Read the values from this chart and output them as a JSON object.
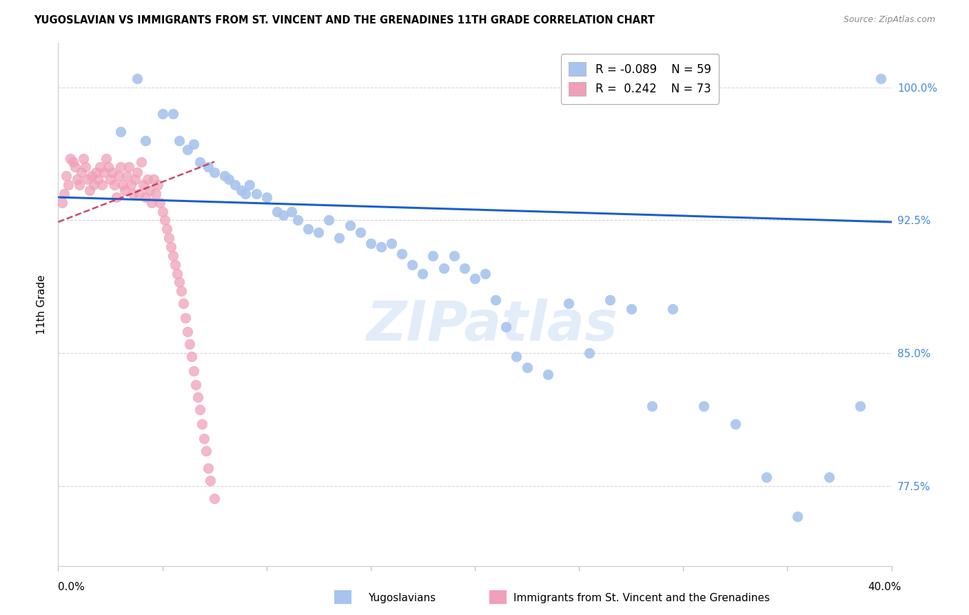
{
  "title": "YUGOSLAVIAN VS IMMIGRANTS FROM ST. VINCENT AND THE GRENADINES 11TH GRADE CORRELATION CHART",
  "source": "Source: ZipAtlas.com",
  "ylabel": "11th Grade",
  "ytick_labels": [
    "77.5%",
    "85.0%",
    "92.5%",
    "100.0%"
  ],
  "ytick_values": [
    0.775,
    0.85,
    0.925,
    1.0
  ],
  "ylim": [
    0.73,
    1.025
  ],
  "xlim": [
    0.0,
    0.4
  ],
  "blue_R": -0.089,
  "blue_N": 59,
  "pink_R": 0.242,
  "pink_N": 73,
  "blue_label": "Yugoslavians",
  "pink_label": "Immigrants from St. Vincent and the Grenadines",
  "blue_color": "#a8c4ee",
  "pink_color": "#f0a0b8",
  "blue_edge_color": "#7aaade",
  "pink_edge_color": "#e07898",
  "blue_line_color": "#1a5fcc",
  "pink_line_color": "#cc3355",
  "blue_x": [
    0.03,
    0.038,
    0.042,
    0.05,
    0.055,
    0.058,
    0.062,
    0.065,
    0.068,
    0.072,
    0.075,
    0.08,
    0.082,
    0.085,
    0.088,
    0.09,
    0.092,
    0.095,
    0.1,
    0.105,
    0.108,
    0.112,
    0.115,
    0.12,
    0.125,
    0.13,
    0.135,
    0.14,
    0.145,
    0.15,
    0.155,
    0.16,
    0.165,
    0.17,
    0.175,
    0.18,
    0.185,
    0.19,
    0.195,
    0.2,
    0.205,
    0.21,
    0.215,
    0.22,
    0.225,
    0.235,
    0.245,
    0.255,
    0.265,
    0.275,
    0.285,
    0.295,
    0.31,
    0.325,
    0.34,
    0.355,
    0.37,
    0.385,
    0.395
  ],
  "blue_y": [
    0.975,
    1.005,
    0.97,
    0.985,
    0.985,
    0.97,
    0.965,
    0.968,
    0.958,
    0.955,
    0.952,
    0.95,
    0.948,
    0.945,
    0.942,
    0.94,
    0.945,
    0.94,
    0.938,
    0.93,
    0.928,
    0.93,
    0.925,
    0.92,
    0.918,
    0.925,
    0.915,
    0.922,
    0.918,
    0.912,
    0.91,
    0.912,
    0.906,
    0.9,
    0.895,
    0.905,
    0.898,
    0.905,
    0.898,
    0.892,
    0.895,
    0.88,
    0.865,
    0.848,
    0.842,
    0.838,
    0.878,
    0.85,
    0.88,
    0.875,
    0.82,
    0.875,
    0.82,
    0.81,
    0.78,
    0.758,
    0.78,
    0.82,
    1.005
  ],
  "pink_x": [
    0.002,
    0.003,
    0.004,
    0.005,
    0.006,
    0.007,
    0.008,
    0.009,
    0.01,
    0.011,
    0.012,
    0.013,
    0.014,
    0.015,
    0.016,
    0.017,
    0.018,
    0.019,
    0.02,
    0.021,
    0.022,
    0.023,
    0.024,
    0.025,
    0.026,
    0.027,
    0.028,
    0.029,
    0.03,
    0.031,
    0.032,
    0.033,
    0.034,
    0.035,
    0.036,
    0.037,
    0.038,
    0.039,
    0.04,
    0.041,
    0.042,
    0.043,
    0.044,
    0.045,
    0.046,
    0.047,
    0.048,
    0.049,
    0.05,
    0.051,
    0.052,
    0.053,
    0.054,
    0.055,
    0.056,
    0.057,
    0.058,
    0.059,
    0.06,
    0.061,
    0.062,
    0.063,
    0.064,
    0.065,
    0.066,
    0.067,
    0.068,
    0.069,
    0.07,
    0.071,
    0.072,
    0.073,
    0.075
  ],
  "pink_y": [
    0.935,
    0.94,
    0.95,
    0.945,
    0.96,
    0.958,
    0.955,
    0.948,
    0.945,
    0.952,
    0.96,
    0.955,
    0.948,
    0.942,
    0.95,
    0.945,
    0.952,
    0.948,
    0.955,
    0.945,
    0.952,
    0.96,
    0.955,
    0.948,
    0.952,
    0.945,
    0.938,
    0.95,
    0.955,
    0.945,
    0.942,
    0.95,
    0.955,
    0.945,
    0.94,
    0.948,
    0.952,
    0.94,
    0.958,
    0.945,
    0.938,
    0.948,
    0.942,
    0.935,
    0.948,
    0.94,
    0.945,
    0.935,
    0.93,
    0.925,
    0.92,
    0.915,
    0.91,
    0.905,
    0.9,
    0.895,
    0.89,
    0.885,
    0.878,
    0.87,
    0.862,
    0.855,
    0.848,
    0.84,
    0.832,
    0.825,
    0.818,
    0.81,
    0.802,
    0.795,
    0.785,
    0.778,
    0.768
  ],
  "blue_trend_x": [
    0.0,
    0.4
  ],
  "blue_trend_y": [
    0.938,
    0.924
  ],
  "pink_trend_x": [
    0.0,
    0.075
  ],
  "pink_trend_y": [
    0.924,
    0.958
  ]
}
